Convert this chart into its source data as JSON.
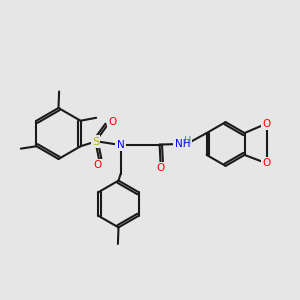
{
  "background_color": "#e6e6e6",
  "bond_color": "#1a1a1a",
  "bond_width": 1.5,
  "atom_colors": {
    "N": "#0000ff",
    "O": "#ff0000",
    "S": "#cccc00",
    "H": "#4a7a7a",
    "C": "#1a1a1a"
  },
  "font_size": 7.5
}
